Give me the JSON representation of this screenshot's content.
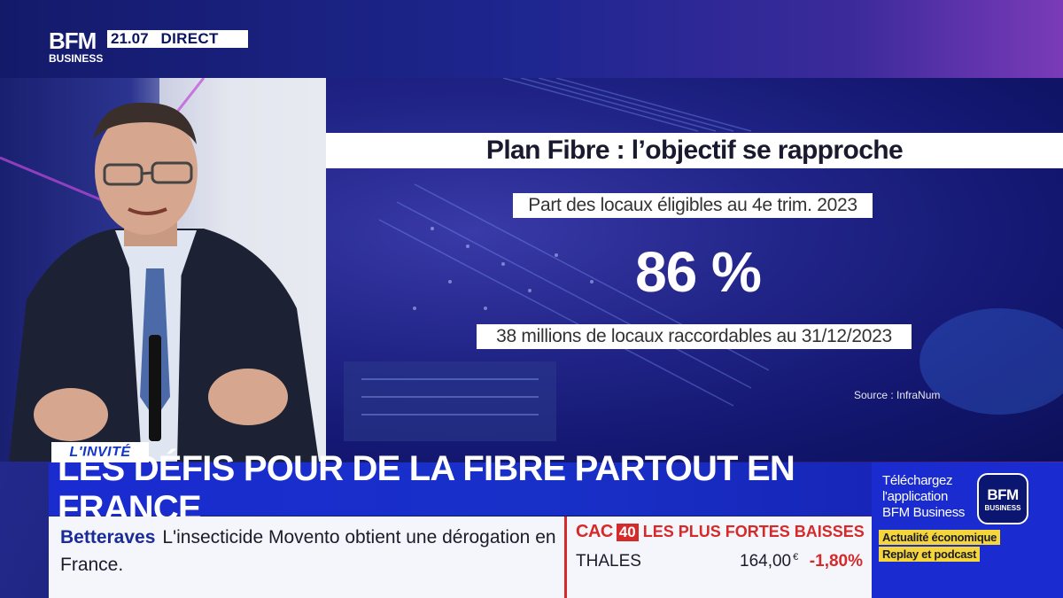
{
  "channel": {
    "brand_top": "BFM",
    "brand_bottom": "BUSINESS",
    "time": "21.07",
    "live_label": "DIRECT"
  },
  "graphic": {
    "title": "Plan Fibre : l’objectif se rapproche",
    "share_label": "Part des locaux éligibles au 4e trim. 2023",
    "share_value": "86 %",
    "total_label": "38 millions de locaux raccordables au 31/12/2023",
    "source": "Source : InfraNum"
  },
  "lower_third": {
    "tag": "L'INVITÉ",
    "headline": "LES DÉFIS POUR DE LA FIBRE PARTOUT EN FRANCE"
  },
  "ticker": {
    "category": "Betteraves",
    "text": "L'insecticide Movento obtient une dérogation en France."
  },
  "market": {
    "index_name": "CAC",
    "index_number": "40",
    "subtitle": "LES PLUS FORTES BAISSES",
    "rows": [
      {
        "name": "THALES",
        "price": "164,00",
        "currency": "€",
        "change": "-1,80%"
      }
    ]
  },
  "promo": {
    "line1": "Téléchargez",
    "line2": "l'application",
    "line3": "BFM Business",
    "logo_top": "BFM",
    "logo_bottom": "BUSINESS",
    "pill_1": "Actualité économique",
    "pill_2": "Replay et podcast"
  },
  "colors": {
    "brand_blue": "#1a2bd0",
    "alert_red": "#d62a2a",
    "promo_yellow": "#f4d63a"
  }
}
